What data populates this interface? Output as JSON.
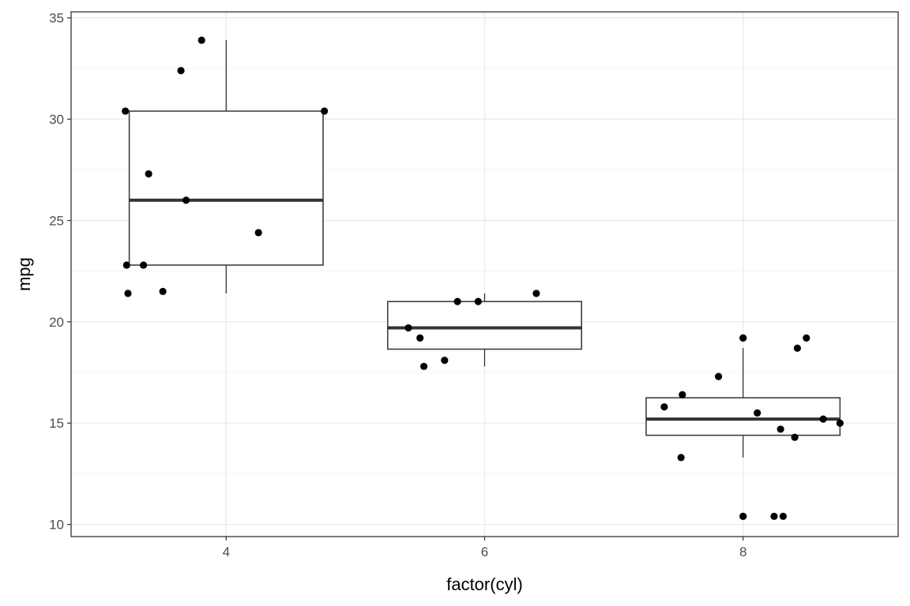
{
  "chart_data": {
    "type": "boxplot",
    "title": "",
    "xlabel": "factor(cyl)",
    "ylabel": "mpg",
    "categories": [
      "4",
      "6",
      "8"
    ],
    "ylim": [
      9.4,
      35.3
    ],
    "y_ticks": [
      10,
      15,
      20,
      25,
      30,
      35
    ],
    "grid": true,
    "boxes": [
      {
        "category": "4",
        "min": 21.4,
        "q1": 22.8,
        "median": 26.0,
        "q3": 30.4,
        "max": 33.9
      },
      {
        "category": "6",
        "min": 17.8,
        "q1": 18.65,
        "median": 19.7,
        "q3": 21.0,
        "max": 21.4
      },
      {
        "category": "8",
        "min": 13.3,
        "q1": 14.4,
        "median": 15.2,
        "q3": 16.25,
        "max": 18.7
      }
    ],
    "outliers": [
      {
        "category": "8",
        "y": 10.4
      },
      {
        "category": "8",
        "y": 19.2
      }
    ],
    "points": [
      {
        "x": 3.22,
        "y": 30.4
      },
      {
        "x": 3.81,
        "y": 33.9
      },
      {
        "x": 3.65,
        "y": 32.4
      },
      {
        "x": 4.76,
        "y": 30.4
      },
      {
        "x": 3.4,
        "y": 27.3
      },
      {
        "x": 3.69,
        "y": 26.0
      },
      {
        "x": 4.25,
        "y": 24.4
      },
      {
        "x": 3.23,
        "y": 22.8
      },
      {
        "x": 3.36,
        "y": 22.8
      },
      {
        "x": 3.24,
        "y": 21.4
      },
      {
        "x": 3.51,
        "y": 21.5
      },
      {
        "x": 6.4,
        "y": 21.4
      },
      {
        "x": 5.79,
        "y": 21.0
      },
      {
        "x": 5.95,
        "y": 21.0
      },
      {
        "x": 5.41,
        "y": 19.7
      },
      {
        "x": 5.5,
        "y": 19.2
      },
      {
        "x": 5.69,
        "y": 18.1
      },
      {
        "x": 5.53,
        "y": 17.8
      },
      {
        "x": 8.0,
        "y": 19.2
      },
      {
        "x": 8.49,
        "y": 19.2
      },
      {
        "x": 8.42,
        "y": 18.7
      },
      {
        "x": 7.81,
        "y": 17.3
      },
      {
        "x": 7.53,
        "y": 16.4
      },
      {
        "x": 7.39,
        "y": 15.8
      },
      {
        "x": 8.11,
        "y": 15.5
      },
      {
        "x": 8.62,
        "y": 15.2
      },
      {
        "x": 8.75,
        "y": 15.0
      },
      {
        "x": 8.29,
        "y": 14.7
      },
      {
        "x": 8.4,
        "y": 14.3
      },
      {
        "x": 7.52,
        "y": 13.3
      },
      {
        "x": 8.0,
        "y": 10.4
      },
      {
        "x": 8.24,
        "y": 10.4
      },
      {
        "x": 8.31,
        "y": 10.4
      }
    ],
    "x_ticks": [
      4,
      6,
      8
    ],
    "xlim": [
      2.8,
      9.2
    ]
  },
  "colors": {
    "background": "#ffffff",
    "grid_major": "#ebebeb",
    "grid_minor": "#f5f5f5",
    "panel_border": "#333333",
    "box_line": "#333333",
    "point": "#000000",
    "tick_text": "#4d4d4d"
  }
}
